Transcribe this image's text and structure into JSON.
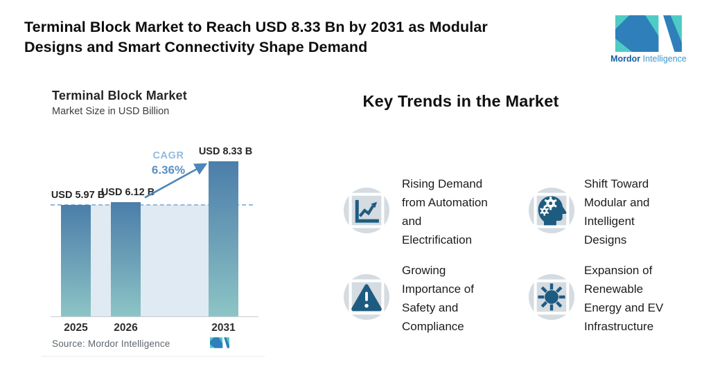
{
  "header": {
    "title": "Terminal Block Market to Reach USD 8.33 Bn by 2031 as Modular\nDesigns and Smart Connectivity Shape Demand"
  },
  "brand": {
    "name_bold": "Mordor",
    "name_light": "Intelligence",
    "teal": "#4ecbc4",
    "blue": "#2e7fba"
  },
  "chart_data": {
    "type": "bar",
    "title": "Terminal Block Market",
    "subtitle": "Market Size in USD Billion",
    "categories": [
      "2025",
      "2026",
      "2031"
    ],
    "values": [
      5.97,
      6.12,
      8.33
    ],
    "bar_labels": [
      "USD 5.97 B",
      "USD 6.12 B",
      "USD 8.33 B"
    ],
    "ylabel": "USD Billion",
    "guide_level": 5.97,
    "cagr": {
      "label": "CAGR",
      "value": "6.36%"
    },
    "source": "Source: Mordor Intelligence",
    "grid": false,
    "legend": false,
    "colors": {
      "bar_top": "#4b7ea9",
      "bar_bottom": "#8cc5c6",
      "band": "#e0eaf2",
      "dashed": "#94badb",
      "arrow": "#4d86ba",
      "cagr_label": "#92bbdf",
      "cagr_value": "#5b90c4",
      "axis": "#c8cbcd"
    }
  },
  "trends": {
    "heading": "Key Trends in the Market",
    "icon_glyph_color": "#1d5c80",
    "icon_circle_color": "#d4dbe1",
    "items": [
      {
        "icon": "line-chart-icon",
        "label": "Rising Demand\nfrom Automation\nand\nElectrification"
      },
      {
        "icon": "head-gears-icon",
        "label": "Shift Toward\nModular and\nIntelligent\nDesigns"
      },
      {
        "icon": "warning-triangle-icon",
        "label": "Growing\nImportance of\nSafety and\nCompliance"
      },
      {
        "icon": "sun-icon",
        "label": "Expansion of\nRenewable\nEnergy and EV\nInfrastructure"
      }
    ]
  }
}
